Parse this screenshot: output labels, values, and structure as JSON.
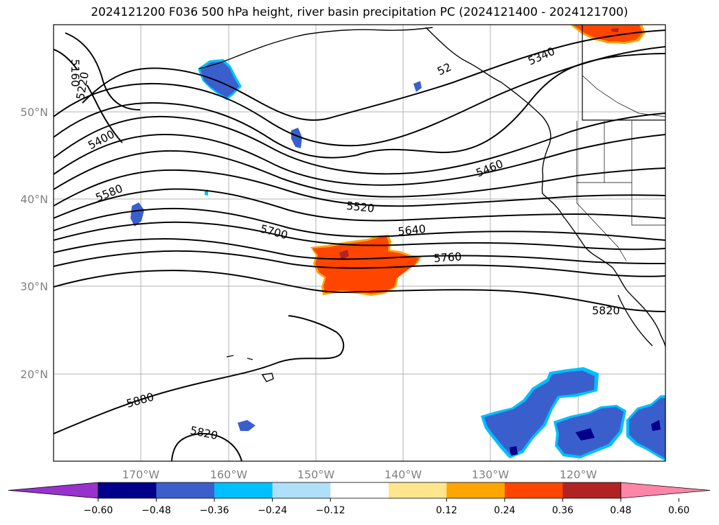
{
  "title": "2024121200 F036 500 hPa height, river basin precipitation PC (2024121400 - 2024121700)",
  "map": {
    "lat_labels": [
      "50°N",
      "40°N",
      "30°N",
      "20°N"
    ],
    "lon_labels": [
      "170°W",
      "160°W",
      "150°W",
      "140°W",
      "130°W",
      "120°W"
    ],
    "contour_labels": [
      "5160",
      "5220",
      "5400",
      "5580",
      "5700",
      "5520",
      "5640",
      "5760",
      "5460",
      "5340",
      "52",
      "5820",
      "5880",
      "5820"
    ]
  },
  "colorbar": {
    "ticks": [
      "−0.60",
      "−0.48",
      "−0.36",
      "−0.24",
      "−0.12",
      "0.12",
      "0.24",
      "0.36",
      "0.48",
      "0.60"
    ],
    "colors": [
      "#9932cc",
      "#00008b",
      "#3a5fcd",
      "#00bfff",
      "#afe0fa",
      "#ffffff",
      "#ffe68c",
      "#ffa500",
      "#ff4500",
      "#b22222",
      "#ff85a8"
    ]
  }
}
